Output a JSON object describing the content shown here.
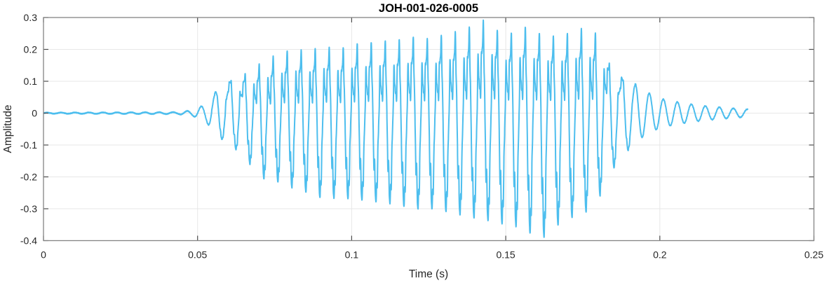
{
  "chart_data": {
    "type": "line",
    "title": "JOH-001-026-0005",
    "xlabel": "Time (s)",
    "ylabel": "Amplitude",
    "xlim": [
      0,
      0.25
    ],
    "ylim": [
      -0.4,
      0.3
    ],
    "x_ticks": [
      0,
      0.05,
      0.1,
      0.15,
      0.2,
      0.25
    ],
    "x_tick_labels": [
      "0",
      "0.05",
      "0.1",
      "0.15",
      "0.2",
      "0.25"
    ],
    "y_ticks": [
      -0.4,
      -0.3,
      -0.2,
      -0.1,
      0,
      0.1,
      0.2,
      0.3
    ],
    "y_tick_labels": [
      "-0.4",
      "-0.3",
      "-0.2",
      "-0.1",
      "0",
      "0.1",
      "0.2",
      "0.3"
    ],
    "grid": true,
    "box": true,
    "tick_direction": "in",
    "legend": "none",
    "colors": {
      "line": "#4DBEEE",
      "axis": "#848484",
      "tick": "#4d4d4d",
      "grid": "#e7e7e7",
      "text": "#262626",
      "title": "#000000",
      "background": "#ffffff"
    },
    "series": [
      {
        "name": "JOH-001-026-0005 waveform",
        "signal": {
          "t_start": 0,
          "t_end": 0.2285,
          "fundamental_hz": 220,
          "noise_amp": 0.0013,
          "peak_positive": 0.295,
          "peak_negative": -0.39,
          "onset_s": 0.05,
          "envelope_pos": [
            [
              0,
              0.0015
            ],
            [
              0.0435,
              0.003
            ],
            [
              0.046,
              0.006
            ],
            [
              0.0485,
              0.009
            ],
            [
              0.0505,
              0.018
            ],
            [
              0.053,
              0.03
            ],
            [
              0.056,
              0.07
            ],
            [
              0.059,
              0.09
            ],
            [
              0.062,
              0.11
            ],
            [
              0.065,
              0.12
            ],
            [
              0.068,
              0.14
            ],
            [
              0.072,
              0.165
            ],
            [
              0.076,
              0.185
            ],
            [
              0.081,
              0.2
            ],
            [
              0.086,
              0.195
            ],
            [
              0.091,
              0.21
            ],
            [
              0.096,
              0.2
            ],
            [
              0.101,
              0.215
            ],
            [
              0.106,
              0.22
            ],
            [
              0.111,
              0.225
            ],
            [
              0.116,
              0.23
            ],
            [
              0.121,
              0.24
            ],
            [
              0.126,
              0.23
            ],
            [
              0.131,
              0.25
            ],
            [
              0.1365,
              0.26
            ],
            [
              0.144,
              0.295
            ],
            [
              0.148,
              0.25
            ],
            [
              0.152,
              0.25
            ],
            [
              0.156,
              0.27
            ],
            [
              0.161,
              0.25
            ],
            [
              0.166,
              0.24
            ],
            [
              0.171,
              0.25
            ],
            [
              0.176,
              0.27
            ],
            [
              0.179,
              0.25
            ],
            [
              0.182,
              0.22
            ],
            [
              0.184,
              0.14
            ],
            [
              0.187,
              0.115
            ],
            [
              0.191,
              0.1
            ],
            [
              0.195,
              0.07
            ],
            [
              0.2,
              0.046
            ],
            [
              0.205,
              0.036
            ],
            [
              0.21,
              0.028
            ],
            [
              0.215,
              0.022
            ],
            [
              0.22,
              0.018
            ],
            [
              0.225,
              0.014
            ],
            [
              0.2285,
              0.012
            ]
          ],
          "envelope_neg": [
            [
              0,
              -0.0015
            ],
            [
              0.0435,
              -0.003
            ],
            [
              0.046,
              -0.006
            ],
            [
              0.0485,
              -0.009
            ],
            [
              0.0505,
              -0.018
            ],
            [
              0.053,
              -0.03
            ],
            [
              0.056,
              -0.07
            ],
            [
              0.059,
              -0.09
            ],
            [
              0.062,
              -0.11
            ],
            [
              0.065,
              -0.14
            ],
            [
              0.068,
              -0.17
            ],
            [
              0.072,
              -0.21
            ],
            [
              0.076,
              -0.215
            ],
            [
              0.081,
              -0.235
            ],
            [
              0.086,
              -0.25
            ],
            [
              0.091,
              -0.27
            ],
            [
              0.096,
              -0.265
            ],
            [
              0.101,
              -0.27
            ],
            [
              0.106,
              -0.275
            ],
            [
              0.111,
              -0.28
            ],
            [
              0.116,
              -0.29
            ],
            [
              0.121,
              -0.3
            ],
            [
              0.126,
              -0.3
            ],
            [
              0.131,
              -0.31
            ],
            [
              0.136,
              -0.32
            ],
            [
              0.141,
              -0.33
            ],
            [
              0.146,
              -0.34
            ],
            [
              0.151,
              -0.35
            ],
            [
              0.156,
              -0.36
            ],
            [
              0.159,
              -0.385
            ],
            [
              0.163,
              -0.39
            ],
            [
              0.167,
              -0.35
            ],
            [
              0.171,
              -0.33
            ],
            [
              0.176,
              -0.31
            ],
            [
              0.179,
              -0.28
            ],
            [
              0.182,
              -0.24
            ],
            [
              0.184,
              -0.19
            ],
            [
              0.187,
              -0.14
            ],
            [
              0.191,
              -0.105
            ],
            [
              0.195,
              -0.07
            ],
            [
              0.2,
              -0.046
            ],
            [
              0.205,
              -0.036
            ],
            [
              0.21,
              -0.028
            ],
            [
              0.215,
              -0.022
            ],
            [
              0.22,
              -0.018
            ],
            [
              0.225,
              -0.014
            ],
            [
              0.2285,
              -0.012
            ]
          ],
          "harmonics": [
            {
              "k": 1,
              "amp": 1,
              "phase": 0
            },
            {
              "k": 2,
              "amp": 0.42,
              "phase": 2.2
            },
            {
              "k": 3,
              "amp": 0.2,
              "phase": 1.0
            },
            {
              "k": 5,
              "amp": 0.09,
              "phase": 0.3
            },
            {
              "k": 8,
              "amp": 0.12,
              "phase": 0.6
            },
            {
              "k": 13,
              "amp": 0.06,
              "phase": 0
            }
          ],
          "harmonic_window": {
            "fade_in": [
              0.053,
              0.07
            ],
            "fade_out": [
              0.18,
              0.193
            ]
          }
        }
      }
    ]
  }
}
